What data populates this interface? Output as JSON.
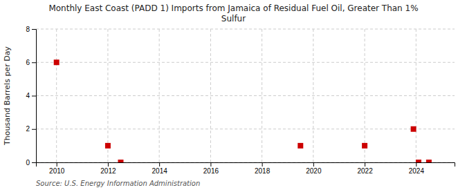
{
  "chart_data": {
    "type": "scatter",
    "title": "Monthly East Coast (PADD 1) Imports from Jamaica of Residual Fuel Oil, Greater Than 1%\nSulfur",
    "ylabel": "Thousand Barrels per Day",
    "source": "Source: U.S. Energy Information Administration",
    "x": [
      2010.0,
      2012.0,
      2012.5,
      2019.5,
      2022.0,
      2023.9,
      2024.1,
      2024.5
    ],
    "values": [
      6.0,
      1.0,
      0.0,
      1.0,
      1.0,
      2.0,
      0.0,
      0.0
    ],
    "color": "#cc0000",
    "marker": "square",
    "xlim": [
      2009.2,
      2025.5
    ],
    "ylim": [
      0,
      8
    ],
    "xticks": [
      2010,
      2012,
      2014,
      2016,
      2018,
      2020,
      2022,
      2024
    ],
    "yticks": [
      0,
      2,
      4,
      6,
      8
    ],
    "grid": true
  }
}
